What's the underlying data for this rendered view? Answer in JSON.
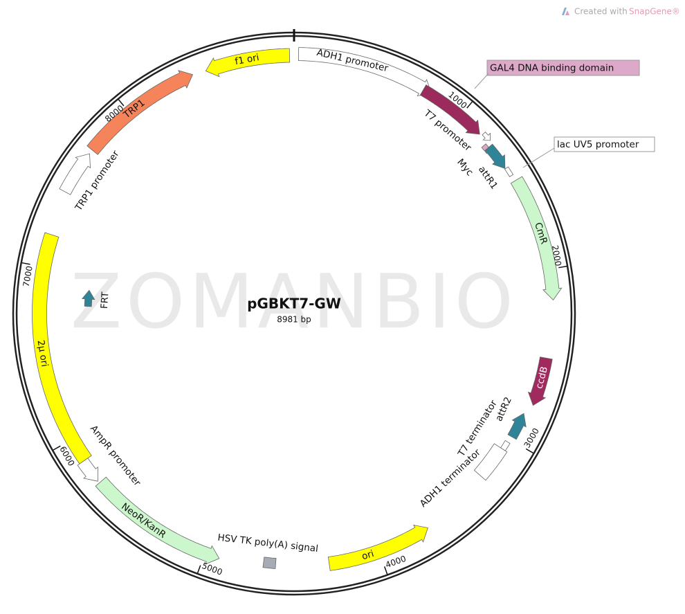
{
  "header": {
    "credit": "Created with",
    "brand": "SnapGene®"
  },
  "map": {
    "name": "pGBKT7-GW",
    "size": "8981 bp",
    "watermark": "ZOMANBIO",
    "ticks": [
      "1000",
      "2000",
      "3000",
      "4000",
      "5000",
      "6000",
      "7000",
      "8000"
    ],
    "features": [
      {
        "label": "ADH1 promoter",
        "color": "#ffffff"
      },
      {
        "label": "f1 ori",
        "color": "#ffff00"
      },
      {
        "label": "GAL4 DNA binding domain",
        "color": "#9b2a5d"
      },
      {
        "label": "T7 promoter",
        "color": "#ffffff"
      },
      {
        "label": "Myc",
        "color": "#dca9c5"
      },
      {
        "label": "attR1",
        "color": "#2f8597"
      },
      {
        "label": "lac UV5 promoter",
        "color": "#ffffff"
      },
      {
        "label": "CmR",
        "color": "#ccf7cc"
      },
      {
        "label": "ccdB",
        "color": "#a02a5e"
      },
      {
        "label": "attR2",
        "color": "#2f8597"
      },
      {
        "label": "T7 terminator",
        "color": "#ffffff"
      },
      {
        "label": "ADH1 terminator",
        "color": "#ffffff"
      },
      {
        "label": "ori",
        "color": "#ffff00"
      },
      {
        "label": "HSV TK poly(A) signal",
        "color": "#a7abb5"
      },
      {
        "label": "NeoR/KanR",
        "color": "#ccf7cc"
      },
      {
        "label": "AmpR promoter",
        "color": "#ffffff"
      },
      {
        "label": "2µ ori",
        "color": "#ffff00"
      },
      {
        "label": "FRT",
        "color": "#2f8597"
      },
      {
        "label": "TRP1 promoter",
        "color": "#ffffff"
      },
      {
        "label": "TRP1",
        "color": "#f5845a"
      }
    ]
  }
}
